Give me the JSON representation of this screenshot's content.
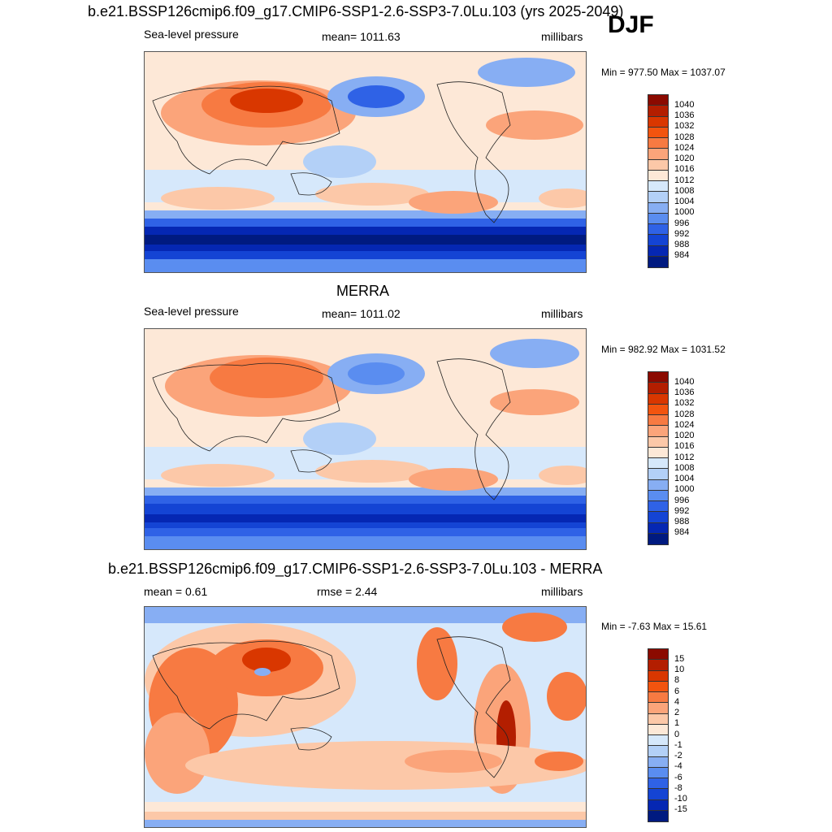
{
  "season": "DJF",
  "panels": [
    {
      "title": "b.e21.BSSP126cmip6.f09_g17.CMIP6-SSP1-2.6-SSP3-7.0Lu.103 (yrs 2025-2049)",
      "variable": "Sea-level pressure",
      "stat": "mean= 1011.63",
      "units": "millibars",
      "minmax": "Min = 977.50 Max = 1037.07"
    },
    {
      "title": "MERRA",
      "variable": "Sea-level pressure",
      "stat": "mean= 1011.02",
      "units": "millibars",
      "minmax": "Min = 982.92 Max = 1031.52"
    },
    {
      "title": "b.e21.BSSP126cmip6.f09_g17.CMIP6-SSP1-2.6-SSP3-7.0Lu.103 - MERRA",
      "mean": "mean =   0.61",
      "rmse": "rmse =   2.44",
      "units": "millibars",
      "minmax": "Min =  -7.63 Max =  15.61"
    }
  ],
  "colorbar_pressure": {
    "labels": [
      "1040",
      "1036",
      "1032",
      "1028",
      "1024",
      "1020",
      "1016",
      "1012",
      "1008",
      "1004",
      "1000",
      "996",
      "992",
      "988",
      "984"
    ],
    "colors": [
      "#8b0a00",
      "#b31e00",
      "#d93700",
      "#f2540f",
      "#f77a42",
      "#fba47a",
      "#fcc8a8",
      "#fde8d7",
      "#d6e8fb",
      "#b3d0f7",
      "#87aef3",
      "#5a8df0",
      "#2f62e6",
      "#1444d4",
      "#0527b3",
      "#001a80"
    ]
  },
  "colorbar_difference": {
    "labels": [
      "15",
      "10",
      "8",
      "6",
      "4",
      "2",
      "1",
      "0",
      "-1",
      "-2",
      "-4",
      "-6",
      "-8",
      "-10",
      "-15"
    ],
    "colors": [
      "#8b0a00",
      "#b31e00",
      "#d93700",
      "#f2540f",
      "#f77a42",
      "#fba47a",
      "#fcc8a8",
      "#fde8d7",
      "#d6e8fb",
      "#b3d0f7",
      "#87aef3",
      "#5a8df0",
      "#2f62e6",
      "#1444d4",
      "#0527b3",
      "#001a80"
    ]
  }
}
